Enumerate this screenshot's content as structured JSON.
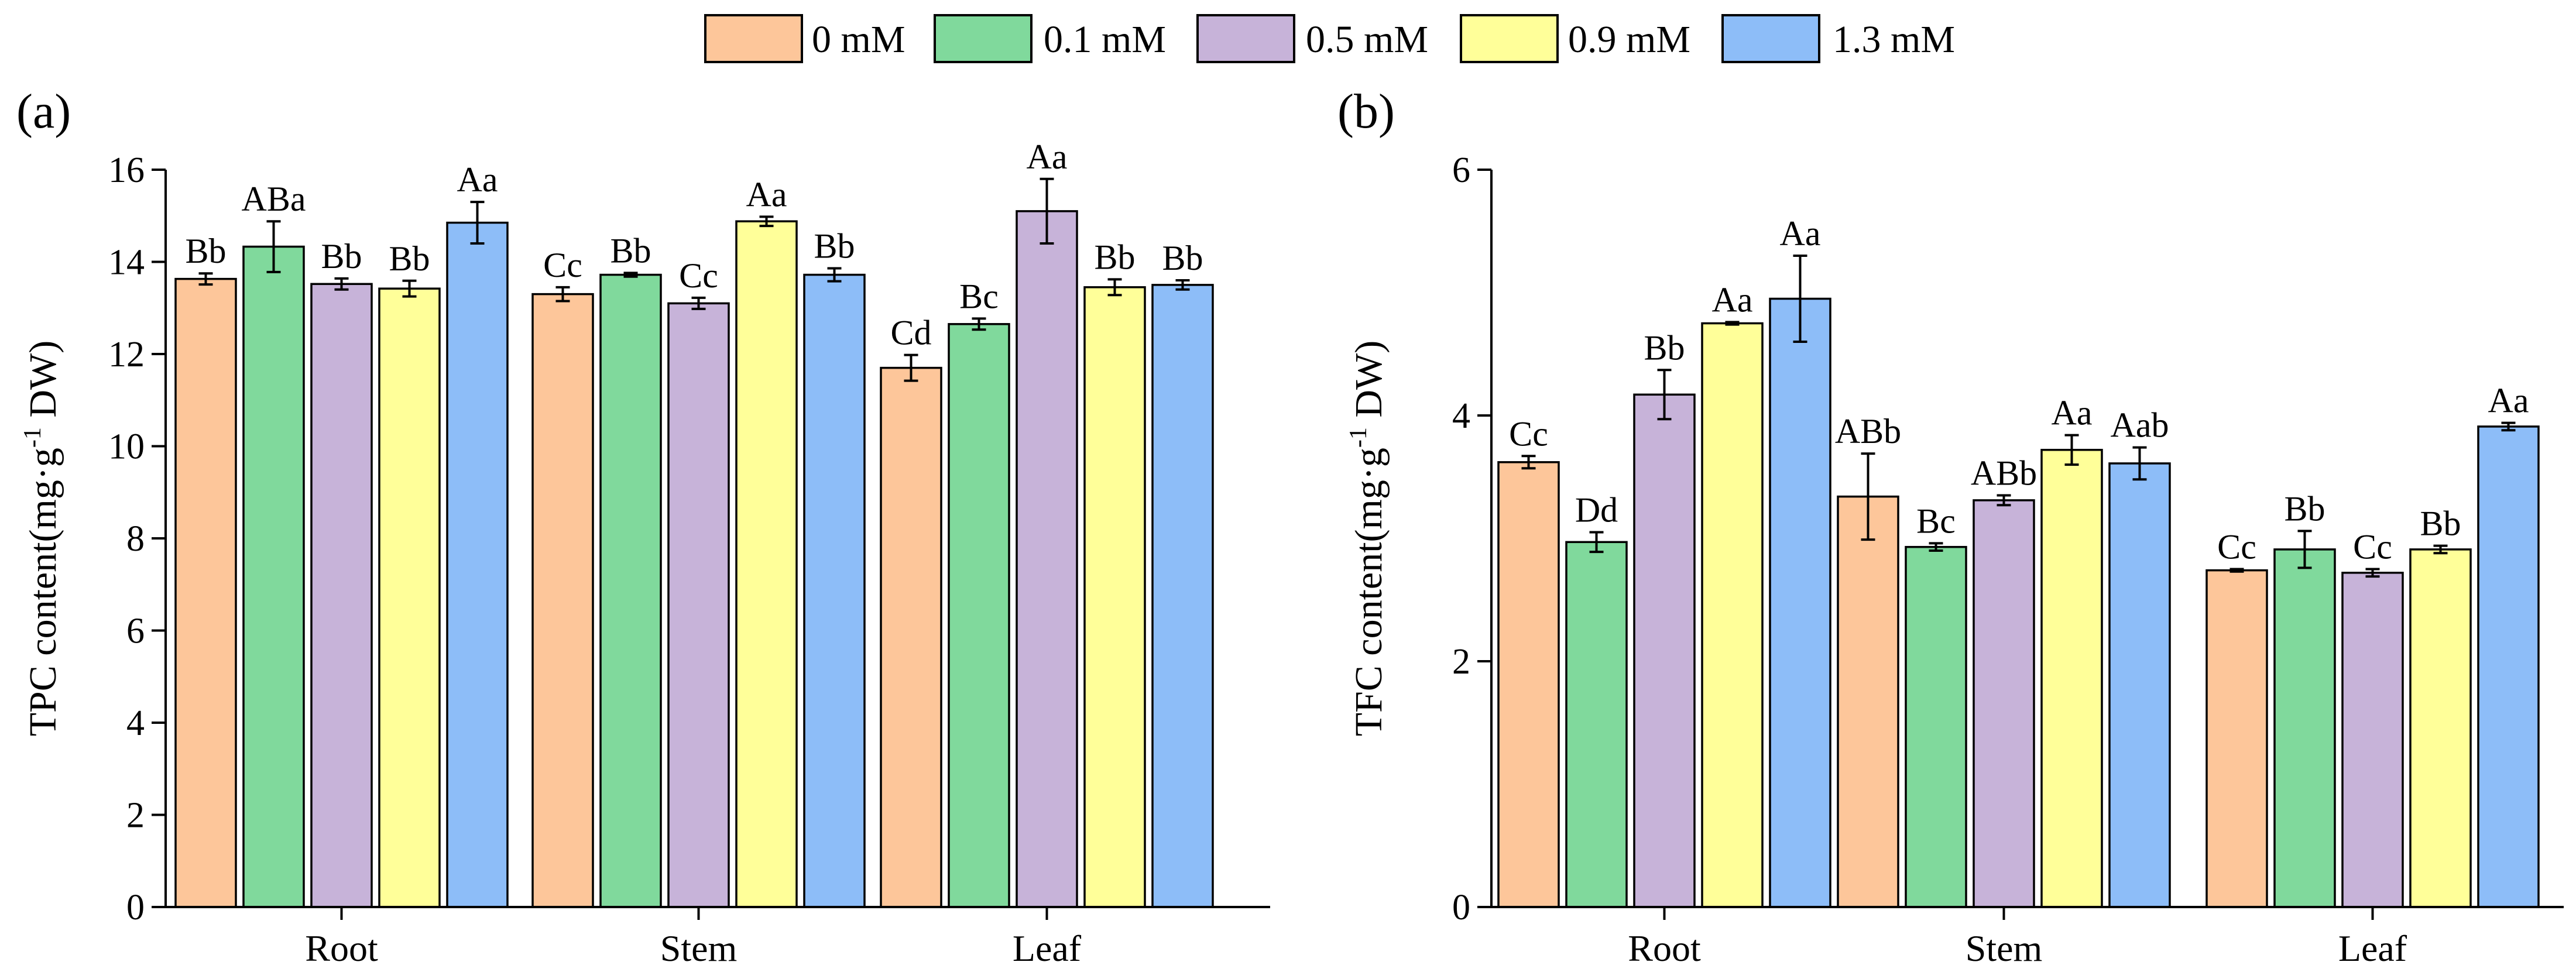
{
  "legend": {
    "entries": [
      {
        "label": "0 mM",
        "color": "#FDC69A"
      },
      {
        "label": "0.1 mM",
        "color": "#80D99C"
      },
      {
        "label": "0.5 mM",
        "color": "#C7B3D9"
      },
      {
        "label": "0.9 mM",
        "color": "#FFFF99"
      },
      {
        "label": "1.3 mM",
        "color": "#8DBDF8"
      }
    ]
  },
  "chart_data": [
    {
      "type": "bar",
      "panel_label": "(a)",
      "ylabel_main": "TPC content(mg·g",
      "ylabel_sup": "-1",
      "ylabel_tail": " DW)",
      "xlabel": "",
      "ylim": [
        0,
        16
      ],
      "yticks": [
        0,
        2,
        4,
        6,
        8,
        10,
        12,
        14,
        16
      ],
      "categories": [
        "Root",
        "Stem",
        "Leaf"
      ],
      "series": [
        {
          "name": "0 mM",
          "values": [
            13.63,
            13.3,
            11.7
          ],
          "errors": [
            0.12,
            0.15,
            0.28
          ],
          "labels": [
            "Bb",
            "Cc",
            "Cd"
          ]
        },
        {
          "name": "0.1 mM",
          "values": [
            14.33,
            13.72,
            12.65
          ],
          "errors": [
            0.55,
            0.04,
            0.12
          ],
          "labels": [
            "ABa",
            "Bb",
            "Bc"
          ]
        },
        {
          "name": "0.5 mM",
          "values": [
            13.52,
            13.1,
            15.1
          ],
          "errors": [
            0.12,
            0.12,
            0.7
          ],
          "labels": [
            "Bb",
            "Cc",
            "Aa"
          ]
        },
        {
          "name": "0.9 mM",
          "values": [
            13.42,
            14.88,
            13.45
          ],
          "errors": [
            0.17,
            0.1,
            0.17
          ],
          "labels": [
            "Bb",
            "Aa",
            "Bb"
          ]
        },
        {
          "name": "1.3 mM",
          "values": [
            14.85,
            13.72,
            13.5
          ],
          "errors": [
            0.45,
            0.14,
            0.1
          ],
          "labels": [
            "Aa",
            "Bb",
            "Bb"
          ]
        }
      ]
    },
    {
      "type": "bar",
      "panel_label": "(b)",
      "ylabel_main": "TFC content(mg·g",
      "ylabel_sup": "-1",
      "ylabel_tail": " DW)",
      "xlabel": "",
      "ylim": [
        0,
        6
      ],
      "yticks": [
        0,
        2,
        4,
        6
      ],
      "categories": [
        "Root",
        "Stem",
        "Leaf"
      ],
      "series": [
        {
          "name": "0 mM",
          "values": [
            3.62,
            3.34,
            2.74
          ],
          "errors": [
            0.05,
            0.35,
            0.01
          ],
          "labels": [
            "Cc",
            "ABb",
            "Cc"
          ]
        },
        {
          "name": "0.1 mM",
          "values": [
            2.97,
            2.93,
            2.91
          ],
          "errors": [
            0.08,
            0.03,
            0.15
          ],
          "labels": [
            "Dd",
            "Bc",
            "Bb"
          ]
        },
        {
          "name": "0.5 mM",
          "values": [
            4.17,
            3.31,
            2.72
          ],
          "errors": [
            0.2,
            0.04,
            0.03
          ],
          "labels": [
            "Bb",
            "ABb",
            "Cc"
          ]
        },
        {
          "name": "0.9 mM",
          "values": [
            4.75,
            3.72,
            2.91
          ],
          "errors": [
            0.01,
            0.12,
            0.03
          ],
          "labels": [
            "Aa",
            "Aa",
            "Bb"
          ]
        },
        {
          "name": "1.3 mM",
          "values": [
            4.95,
            3.61,
            3.91
          ],
          "errors": [
            0.35,
            0.13,
            0.03
          ],
          "labels": [
            "Aa",
            "Aab",
            "Aa"
          ]
        }
      ]
    }
  ]
}
